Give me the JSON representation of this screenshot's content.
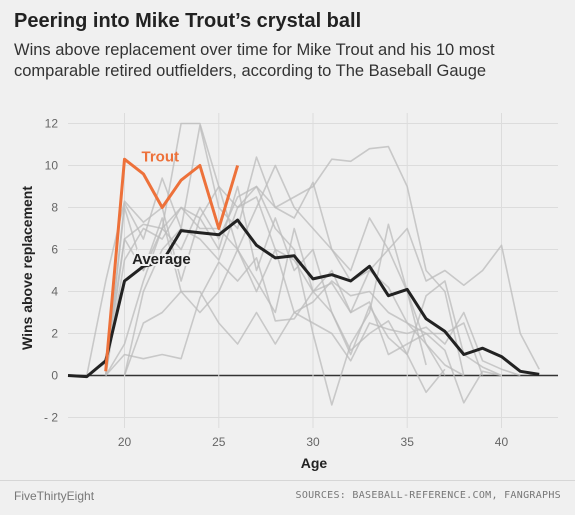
{
  "header": {
    "title": "Peering into Mike Trout’s crystal ball",
    "subtitle": "Wins above replacement over time for Mike Trout and his 10 most comparable retired outfielders, according to The Baseball Gauge"
  },
  "footer": {
    "brand": "FiveThirtyEight",
    "sources": "SOURCES: BASEBALL-REFERENCE.COM, FANGRAPHS"
  },
  "colors": {
    "trout": "#ed713a",
    "average": "#222222",
    "comparables": "#bbbbbb",
    "grid": "#dcdcdc"
  },
  "chart_data": {
    "type": "line",
    "xlabel": "Age",
    "ylabel": "Wins above replacement",
    "xlim": [
      17,
      43
    ],
    "ylim": [
      -2.5,
      12.5
    ],
    "xticks": [
      20,
      25,
      30,
      35,
      40
    ],
    "yticks": [
      -2,
      0,
      2,
      4,
      6,
      8,
      10,
      12
    ],
    "ytick_labels": [
      "- 2",
      "0",
      "2",
      "4",
      "6",
      "8",
      "10",
      "12"
    ],
    "grid": true,
    "series": [
      {
        "name": "Trout",
        "label": "Trout",
        "x": [
          19,
          20,
          21,
          22,
          23,
          24,
          25,
          26
        ],
        "y": [
          0.2,
          10.3,
          9.6,
          8.0,
          9.3,
          10.0,
          7.0,
          10.0
        ]
      },
      {
        "name": "Average",
        "label": "Average",
        "x": [
          17,
          18,
          19,
          20,
          21,
          22,
          23,
          24,
          25,
          26,
          27,
          28,
          29,
          30,
          31,
          32,
          33,
          34,
          35,
          36,
          37,
          38,
          39,
          40,
          41,
          42
        ],
        "y": [
          0.0,
          -0.05,
          0.7,
          4.5,
          5.2,
          5.4,
          6.9,
          6.8,
          6.7,
          7.4,
          6.2,
          5.6,
          5.7,
          4.6,
          4.8,
          4.5,
          5.2,
          3.8,
          4.1,
          2.7,
          2.1,
          1.0,
          1.3,
          0.9,
          0.2,
          0.05
        ]
      }
    ],
    "comparables": [
      {
        "x": [
          18,
          19,
          20,
          21,
          22,
          23,
          24,
          25,
          26,
          27,
          28,
          29,
          30,
          31,
          32,
          33,
          34,
          35,
          36,
          37
        ],
        "y": [
          0,
          0.6,
          6.5,
          7.2,
          7.0,
          12.0,
          12.0,
          9.0,
          8.0,
          8.5,
          6.0,
          5.5,
          4.0,
          5.0,
          3.0,
          5.0,
          4.2,
          2.5,
          1.5,
          0
        ]
      },
      {
        "x": [
          19,
          20,
          21,
          22,
          23,
          24,
          25,
          26,
          27,
          28,
          29,
          30,
          31,
          32,
          33,
          34,
          35,
          36,
          37,
          38
        ],
        "y": [
          0,
          8.2,
          6.5,
          9.4,
          7.0,
          11.9,
          8.0,
          7.0,
          10.4,
          8.0,
          8.5,
          9.0,
          10.3,
          10.2,
          10.8,
          10.9,
          9.0,
          5.0,
          4.0,
          0
        ]
      },
      {
        "x": [
          19,
          20,
          21,
          22,
          23,
          24,
          25,
          26,
          27,
          28,
          29,
          30,
          31,
          32,
          33,
          34,
          35,
          36,
          37,
          38,
          39,
          40,
          41,
          42
        ],
        "y": [
          0,
          5.5,
          7.0,
          6.5,
          8.0,
          7.5,
          9.0,
          6.0,
          8.0,
          10.0,
          8.0,
          7.0,
          6.0,
          5.0,
          7.5,
          6.0,
          7.0,
          4.5,
          5.0,
          4.3,
          5.0,
          6.2,
          2.0,
          0.3
        ]
      },
      {
        "x": [
          19,
          20,
          21,
          22,
          23,
          24,
          25,
          26,
          27,
          28,
          29,
          30,
          31,
          32,
          33,
          34,
          35,
          36
        ],
        "y": [
          0,
          6.5,
          5.0,
          7.0,
          6.0,
          8.0,
          6.5,
          8.5,
          9.0,
          8.0,
          7.5,
          9.2,
          6.0,
          4.5,
          5.0,
          6.0,
          4.0,
          0.5
        ]
      },
      {
        "x": [
          20,
          21,
          22,
          23,
          24,
          25,
          26,
          27,
          28,
          29,
          30,
          31,
          32,
          33,
          34,
          35,
          36,
          37,
          38
        ],
        "y": [
          0,
          4.0,
          6.0,
          7.0,
          6.5,
          5.5,
          8.0,
          9.0,
          7.0,
          6.0,
          2.0,
          -1.4,
          1.5,
          3.0,
          7.2,
          4.0,
          1.5,
          0.5,
          0
        ]
      },
      {
        "x": [
          19,
          20,
          21,
          22,
          23,
          24,
          25,
          26,
          27,
          28,
          29,
          30,
          31,
          32,
          33,
          34,
          35,
          36,
          37
        ],
        "y": [
          0,
          8.0,
          5.0,
          7.5,
          4.0,
          3.0,
          4.0,
          6.0,
          4.5,
          3.0,
          7.0,
          4.0,
          3.0,
          1.2,
          2.0,
          2.6,
          1.0,
          -0.8,
          0.3
        ]
      },
      {
        "x": [
          19,
          20,
          21,
          22,
          23,
          24,
          25,
          26,
          27,
          28,
          29,
          30,
          31,
          32,
          33,
          34,
          35,
          36,
          37,
          38,
          39,
          40
        ],
        "y": [
          0,
          1.5,
          4.5,
          7.0,
          8.0,
          7.0,
          7.0,
          6.0,
          4.0,
          6.0,
          3.0,
          3.5,
          4.5,
          3.8,
          4.0,
          3.0,
          2.5,
          2.0,
          1.2,
          -1.3,
          0.2,
          0
        ]
      },
      {
        "x": [
          20,
          21,
          22,
          23,
          24,
          25,
          26,
          27,
          28,
          29,
          30,
          31,
          32,
          33,
          34,
          35,
          36,
          37,
          38,
          39,
          40,
          41
        ],
        "y": [
          0,
          2.5,
          3.0,
          4.0,
          4.0,
          2.5,
          1.5,
          3.0,
          1.5,
          3.0,
          2.5,
          2.0,
          0.7,
          2.5,
          2.2,
          2.0,
          2.3,
          1.5,
          3.0,
          0.7,
          0.3,
          0
        ]
      },
      {
        "x": [
          19,
          20,
          21,
          22,
          23,
          24,
          25,
          26,
          27,
          28,
          29,
          30,
          31,
          32,
          33,
          34,
          35,
          36,
          37,
          38,
          39
        ],
        "y": [
          0,
          1.0,
          0.8,
          1.0,
          0.8,
          3.7,
          5.4,
          4.5,
          5.6,
          2.6,
          2.7,
          4.0,
          4.4,
          3.0,
          3.5,
          1.0,
          1.5,
          2.0,
          2.0,
          2.5,
          0
        ]
      },
      {
        "x": [
          18,
          19,
          20,
          21,
          22,
          23,
          24,
          25,
          26,
          27,
          28,
          29,
          30,
          31,
          32,
          33,
          34,
          35,
          36,
          37,
          38,
          39,
          40
        ],
        "y": [
          0,
          4.5,
          8.3,
          7.3,
          8.0,
          4.5,
          7.5,
          6.0,
          9.0,
          5.0,
          7.5,
          5.0,
          6.0,
          3.0,
          1.0,
          3.3,
          1.8,
          1.0,
          3.8,
          4.5,
          1.0,
          0.4,
          0
        ]
      }
    ]
  }
}
